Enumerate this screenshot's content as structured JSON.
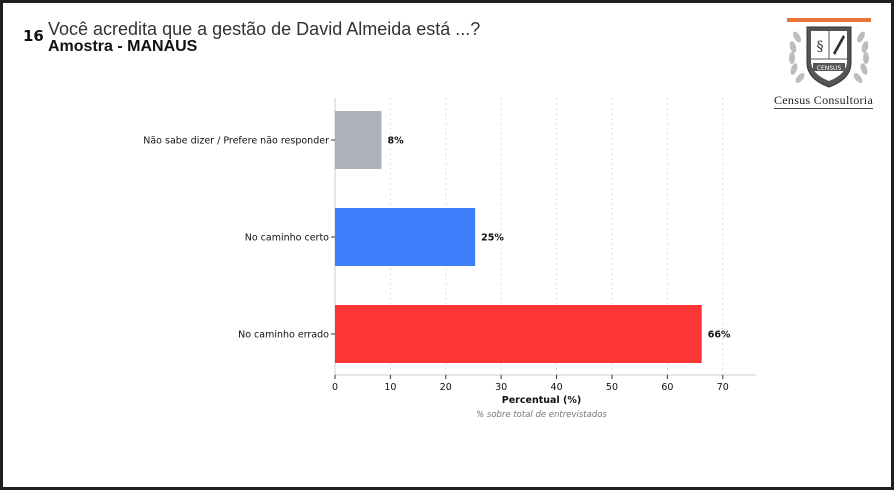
{
  "header": {
    "number": "16",
    "title": "Você acredita que a gestão de David Almeida está ...?",
    "subtitle": "Amostra - MANAUS"
  },
  "logo": {
    "brand": "Census Consultoria",
    "emblem_text": "CENSUS"
  },
  "colors": {
    "gray": "#adb1ba",
    "blue": "#3f7ffb",
    "red": "#fc3535",
    "accent": "#e8763a"
  },
  "chart_data": {
    "type": "bar",
    "orientation": "horizontal",
    "categories": [
      "Não sabe dizer / Prefere não responder",
      "No caminho certo",
      "No caminho errado"
    ],
    "values": [
      8.4,
      25.3,
      66.2
    ],
    "value_labels": [
      "8%",
      "25%",
      "66%"
    ],
    "bar_colors": [
      "#adb1ba",
      "#3f7ffb",
      "#fc3535"
    ],
    "xlabel": "Percentual (%)",
    "xnote": "% sobre total de entrevistados",
    "xlim": [
      0,
      76
    ],
    "xticks": [
      "0",
      "10",
      "20",
      "30",
      "40",
      "50",
      "60",
      "70"
    ],
    "grid": "vertical-dashed"
  }
}
